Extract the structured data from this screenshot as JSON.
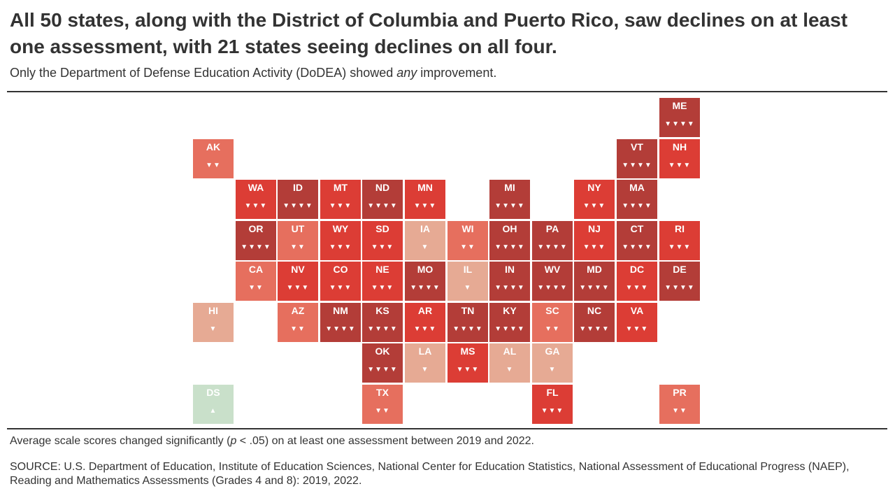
{
  "header": {
    "title": "All 50 states, along with the District of Columbia and Puerto Rico, saw declines on at least one assessment, with 21 states seeing declines on all four.",
    "subtitle_before": "Only the Department of Defense Education Activity (DoDEA) showed ",
    "subtitle_emphasis": "any",
    "subtitle_after": " improvement."
  },
  "footer": {
    "note_before": "Average scale scores changed significantly (",
    "note_p": "p",
    "note_after": " < .05) on at least one assessment between 2019 and 2022.",
    "source": "SOURCE: U.S. Department of Education, Institute of Education Sciences, National Center for Education Statistics, National Assessment of Educational Progress (NAEP), Reading and Mathematics Assessments (Grades 4 and 8): 2019, 2022."
  },
  "colors": {
    "decline_1": "#e6aa94",
    "decline_2": "#e66f5e",
    "decline_3": "#dc3d35",
    "decline_4": "#b33d38",
    "increase_1": "#c9e0ca",
    "text": "#333333"
  },
  "chart_data": {
    "type": "tile-grid-map",
    "title": "All 50 states, along with the District of Columbia and Puerto Rico, saw declines on at least one assessment, with 21 states seeing declines on all four.",
    "value_meaning": "number of assessments (of four) with significant change; negative = decline, positive = increase",
    "tiles": [
      {
        "abbr": "ME",
        "row": 0,
        "col": 11,
        "change": -4,
        "arrows": "▼▼▼▼"
      },
      {
        "abbr": "AK",
        "row": 1,
        "col": 0,
        "change": -2,
        "arrows": "▼▼"
      },
      {
        "abbr": "VT",
        "row": 1,
        "col": 10,
        "change": -4,
        "arrows": "▼▼▼▼"
      },
      {
        "abbr": "NH",
        "row": 1,
        "col": 11,
        "change": -3,
        "arrows": "▼▼▼"
      },
      {
        "abbr": "WA",
        "row": 2,
        "col": 1,
        "change": -3,
        "arrows": "▼▼▼"
      },
      {
        "abbr": "ID",
        "row": 2,
        "col": 2,
        "change": -4,
        "arrows": "▼▼▼▼"
      },
      {
        "abbr": "MT",
        "row": 2,
        "col": 3,
        "change": -3,
        "arrows": "▼▼▼"
      },
      {
        "abbr": "ND",
        "row": 2,
        "col": 4,
        "change": -4,
        "arrows": "▼▼▼▼"
      },
      {
        "abbr": "MN",
        "row": 2,
        "col": 5,
        "change": -3,
        "arrows": "▼▼▼"
      },
      {
        "abbr": "MI",
        "row": 2,
        "col": 7,
        "change": -4,
        "arrows": "▼▼▼▼"
      },
      {
        "abbr": "NY",
        "row": 2,
        "col": 9,
        "change": -3,
        "arrows": "▼▼▼"
      },
      {
        "abbr": "MA",
        "row": 2,
        "col": 10,
        "change": -4,
        "arrows": "▼▼▼▼"
      },
      {
        "abbr": "OR",
        "row": 3,
        "col": 1,
        "change": -4,
        "arrows": "▼▼▼▼"
      },
      {
        "abbr": "UT",
        "row": 3,
        "col": 2,
        "change": -2,
        "arrows": "▼▼"
      },
      {
        "abbr": "WY",
        "row": 3,
        "col": 3,
        "change": -3,
        "arrows": "▼▼▼"
      },
      {
        "abbr": "SD",
        "row": 3,
        "col": 4,
        "change": -3,
        "arrows": "▼▼▼"
      },
      {
        "abbr": "IA",
        "row": 3,
        "col": 5,
        "change": -1,
        "arrows": "▼"
      },
      {
        "abbr": "WI",
        "row": 3,
        "col": 6,
        "change": -2,
        "arrows": "▼▼"
      },
      {
        "abbr": "OH",
        "row": 3,
        "col": 7,
        "change": -4,
        "arrows": "▼▼▼▼"
      },
      {
        "abbr": "PA",
        "row": 3,
        "col": 8,
        "change": -4,
        "arrows": "▼▼▼▼"
      },
      {
        "abbr": "NJ",
        "row": 3,
        "col": 9,
        "change": -3,
        "arrows": "▼▼▼"
      },
      {
        "abbr": "CT",
        "row": 3,
        "col": 10,
        "change": -4,
        "arrows": "▼▼▼▼"
      },
      {
        "abbr": "RI",
        "row": 3,
        "col": 11,
        "change": -3,
        "arrows": "▼▼▼"
      },
      {
        "abbr": "CA",
        "row": 4,
        "col": 1,
        "change": -2,
        "arrows": "▼▼"
      },
      {
        "abbr": "NV",
        "row": 4,
        "col": 2,
        "change": -3,
        "arrows": "▼▼▼"
      },
      {
        "abbr": "CO",
        "row": 4,
        "col": 3,
        "change": -3,
        "arrows": "▼▼▼"
      },
      {
        "abbr": "NE",
        "row": 4,
        "col": 4,
        "change": -3,
        "arrows": "▼▼▼"
      },
      {
        "abbr": "MO",
        "row": 4,
        "col": 5,
        "change": -4,
        "arrows": "▼▼▼▼"
      },
      {
        "abbr": "IL",
        "row": 4,
        "col": 6,
        "change": -1,
        "arrows": "▼"
      },
      {
        "abbr": "IN",
        "row": 4,
        "col": 7,
        "change": -4,
        "arrows": "▼▼▼▼"
      },
      {
        "abbr": "WV",
        "row": 4,
        "col": 8,
        "change": -4,
        "arrows": "▼▼▼▼"
      },
      {
        "abbr": "MD",
        "row": 4,
        "col": 9,
        "change": -4,
        "arrows": "▼▼▼▼"
      },
      {
        "abbr": "DC",
        "row": 4,
        "col": 10,
        "change": -3,
        "arrows": "▼▼▼"
      },
      {
        "abbr": "DE",
        "row": 4,
        "col": 11,
        "change": -4,
        "arrows": "▼▼▼▼"
      },
      {
        "abbr": "HI",
        "row": 5,
        "col": 0,
        "change": -1,
        "arrows": "▼"
      },
      {
        "abbr": "AZ",
        "row": 5,
        "col": 2,
        "change": -2,
        "arrows": "▼▼"
      },
      {
        "abbr": "NM",
        "row": 5,
        "col": 3,
        "change": -4,
        "arrows": "▼▼▼▼"
      },
      {
        "abbr": "KS",
        "row": 5,
        "col": 4,
        "change": -4,
        "arrows": "▼▼▼▼"
      },
      {
        "abbr": "AR",
        "row": 5,
        "col": 5,
        "change": -3,
        "arrows": "▼▼▼"
      },
      {
        "abbr": "TN",
        "row": 5,
        "col": 6,
        "change": -4,
        "arrows": "▼▼▼▼"
      },
      {
        "abbr": "KY",
        "row": 5,
        "col": 7,
        "change": -4,
        "arrows": "▼▼▼▼"
      },
      {
        "abbr": "SC",
        "row": 5,
        "col": 8,
        "change": -2,
        "arrows": "▼▼"
      },
      {
        "abbr": "NC",
        "row": 5,
        "col": 9,
        "change": -4,
        "arrows": "▼▼▼▼"
      },
      {
        "abbr": "VA",
        "row": 5,
        "col": 10,
        "change": -3,
        "arrows": "▼▼▼"
      },
      {
        "abbr": "OK",
        "row": 6,
        "col": 4,
        "change": -4,
        "arrows": "▼▼▼▼"
      },
      {
        "abbr": "LA",
        "row": 6,
        "col": 5,
        "change": -1,
        "arrows": "▼"
      },
      {
        "abbr": "MS",
        "row": 6,
        "col": 6,
        "change": -3,
        "arrows": "▼▼▼"
      },
      {
        "abbr": "AL",
        "row": 6,
        "col": 7,
        "change": -1,
        "arrows": "▼"
      },
      {
        "abbr": "GA",
        "row": 6,
        "col": 8,
        "change": -1,
        "arrows": "▼"
      },
      {
        "abbr": "DS",
        "row": 7,
        "col": 0,
        "change": 1,
        "arrows": "▲"
      },
      {
        "abbr": "TX",
        "row": 7,
        "col": 4,
        "change": -2,
        "arrows": "▼▼"
      },
      {
        "abbr": "FL",
        "row": 7,
        "col": 8,
        "change": -3,
        "arrows": "▼▼▼"
      },
      {
        "abbr": "PR",
        "row": 7,
        "col": 11,
        "change": -2,
        "arrows": "▼▼"
      }
    ]
  }
}
